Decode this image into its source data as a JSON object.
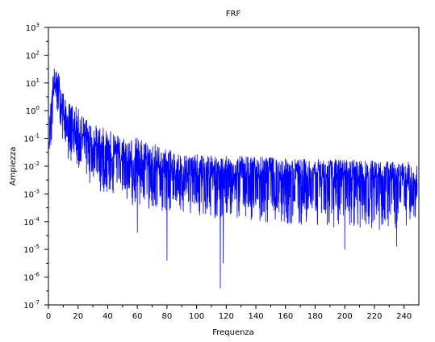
{
  "chart_data": {
    "type": "line",
    "title": "FRF",
    "xlabel": "Frequenza",
    "ylabel": "Ampiezza",
    "xlim": [
      0,
      250
    ],
    "ylim_log10": [
      -7,
      3
    ],
    "yscale": "log",
    "grid": false,
    "x_ticks": [
      "0",
      "20",
      "40",
      "60",
      "80",
      "100",
      "120",
      "140",
      "160",
      "180",
      "200",
      "220",
      "240"
    ],
    "x_tick_values": [
      0,
      20,
      40,
      60,
      80,
      100,
      120,
      140,
      160,
      180,
      200,
      220,
      240
    ],
    "y_tick_exponents": [
      "-7",
      "-6",
      "-5",
      "-4",
      "-3",
      "-2",
      "-1",
      "0",
      "1",
      "2",
      "3"
    ],
    "y_tick_base": "10",
    "series_color": "#0000ff",
    "series": [
      {
        "name": "",
        "envelope_x": [
          0.5,
          1,
          2,
          3,
          4,
          5,
          6,
          7,
          8,
          9,
          10,
          12,
          15,
          20,
          25,
          30,
          40,
          50,
          60,
          70,
          80,
          90,
          100,
          120,
          140,
          160,
          180,
          200,
          220,
          240,
          249
        ],
        "envelope_upper_log10": [
          -0.5,
          0.3,
          0.9,
          1.5,
          1.8,
          1.7,
          1.6,
          1.7,
          1.6,
          1.2,
          1.0,
          0.5,
          0.6,
          0.4,
          0.0,
          -0.2,
          -0.4,
          -0.6,
          -0.6,
          -0.8,
          -1.1,
          -1.3,
          -1.3,
          -1.4,
          -1.4,
          -1.5,
          -1.5,
          -1.5,
          -1.6,
          -1.6,
          -1.6
        ],
        "envelope_mid_log10": [
          -1.0,
          -0.5,
          0.3,
          0.8,
          1.0,
          1.0,
          0.9,
          0.7,
          0.6,
          0.3,
          0.1,
          -0.3,
          -0.4,
          -0.6,
          -0.9,
          -1.1,
          -1.3,
          -1.6,
          -1.8,
          -1.9,
          -2.0,
          -2.1,
          -2.2,
          -2.2,
          -2.2,
          -2.2,
          -2.3,
          -2.3,
          -2.3,
          -2.4,
          -2.4
        ],
        "envelope_lower_log10": [
          -1.6,
          -1.6,
          -1.2,
          -0.8,
          -0.2,
          0.0,
          -0.2,
          -0.5,
          -1.0,
          -1.1,
          -1.3,
          -1.6,
          -2.0,
          -2.2,
          -2.4,
          -2.8,
          -3.0,
          -3.3,
          -3.5,
          -3.6,
          -3.7,
          -3.8,
          -3.8,
          -4.0,
          -4.0,
          -4.1,
          -4.2,
          -4.2,
          -4.3,
          -4.3,
          -3.8
        ],
        "notable_dips": [
          {
            "x": 60,
            "y_log10": -4.4
          },
          {
            "x": 80,
            "y_log10": -5.4
          },
          {
            "x": 116,
            "y_log10": -6.4
          },
          {
            "x": 118,
            "y_log10": -5.5
          },
          {
            "x": 200,
            "y_log10": -5.0
          },
          {
            "x": 235,
            "y_log10": -4.9
          }
        ]
      }
    ]
  }
}
